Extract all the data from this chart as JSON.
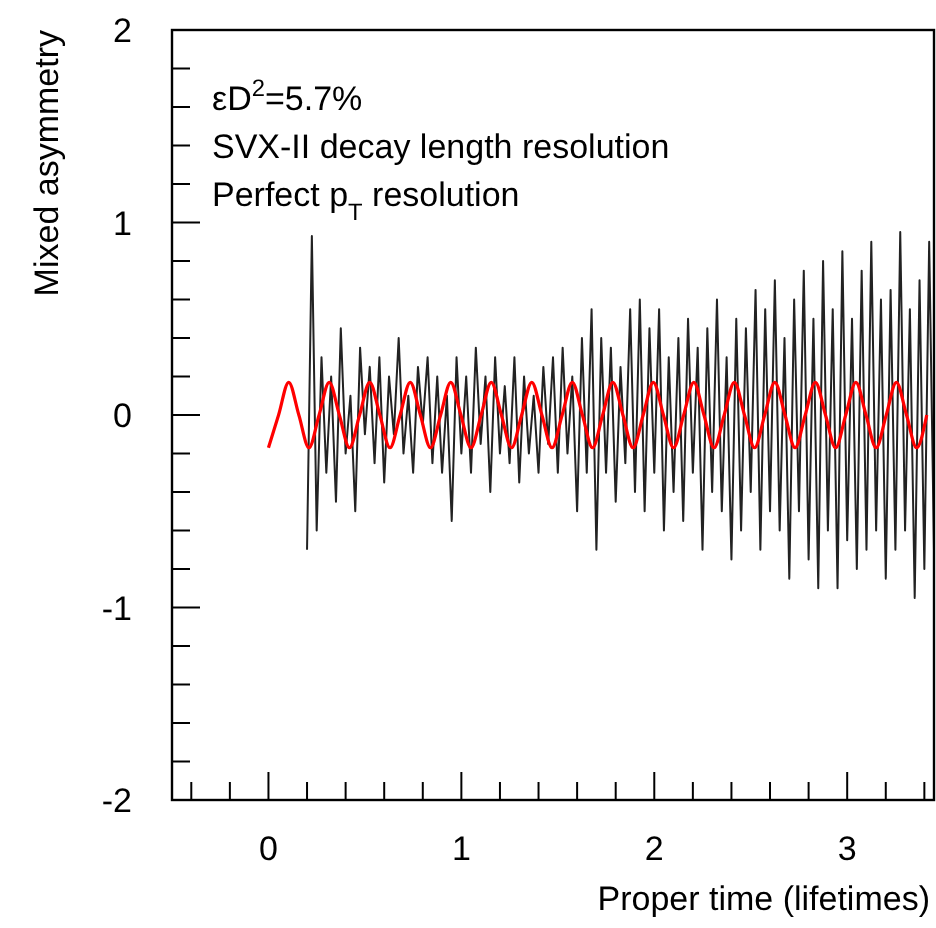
{
  "chart_data": {
    "type": "line",
    "xlabel": "Proper time (lifetimes)",
    "ylabel": "Mixed asymmetry",
    "annotations": [
      "εD$^{2}$=5.7%",
      "SVX-II decay length resolution",
      "Perfect p$_{T}$ resolution"
    ],
    "xlim": [
      -0.5,
      3.45
    ],
    "ylim": [
      -2,
      2
    ],
    "xticks": [
      {
        "value": -0.4,
        "label": null
      },
      {
        "value": -0.2,
        "label": null
      },
      0,
      {
        "value": 0.2,
        "label": null
      },
      {
        "value": 0.4,
        "label": null
      },
      {
        "value": 0.6,
        "label": null
      },
      {
        "value": 0.8,
        "label": null
      },
      1,
      {
        "value": 1.2,
        "label": null
      },
      {
        "value": 1.4,
        "label": null
      },
      {
        "value": 1.6,
        "label": null
      },
      {
        "value": 1.8,
        "label": null
      },
      2,
      {
        "value": 2.2,
        "label": null
      },
      {
        "value": 2.4,
        "label": null
      },
      {
        "value": 2.6,
        "label": null
      },
      {
        "value": 2.8,
        "label": null
      },
      3,
      {
        "value": 3.2,
        "label": null
      },
      {
        "value": 3.4,
        "label": null
      }
    ],
    "yticks": [
      -2,
      {
        "value": -1.8,
        "label": null
      },
      {
        "value": -1.6,
        "label": null
      },
      {
        "value": -1.4,
        "label": null
      },
      {
        "value": -1.2,
        "label": null
      },
      -1,
      {
        "value": -0.8,
        "label": null
      },
      {
        "value": -0.6,
        "label": null
      },
      {
        "value": -0.4,
        "label": null
      },
      {
        "value": -0.2,
        "label": null
      },
      0,
      {
        "value": 0.2,
        "label": null
      },
      {
        "value": 0.4,
        "label": null
      },
      {
        "value": 0.6,
        "label": null
      },
      {
        "value": 0.8,
        "label": null
      },
      1,
      {
        "value": 1.2,
        "label": null
      },
      {
        "value": 1.4,
        "label": null
      },
      {
        "value": 1.6,
        "label": null
      },
      {
        "value": 1.8,
        "label": null
      },
      2
    ],
    "grid": false,
    "series": [
      {
        "color": "#222222",
        "x": [
          0.2,
          0.225,
          0.25,
          0.275,
          0.3,
          0.325,
          0.35,
          0.375,
          0.4,
          0.425,
          0.45,
          0.475,
          0.5,
          0.525,
          0.55,
          0.575,
          0.6,
          0.625,
          0.65,
          0.675,
          0.7,
          0.725,
          0.75,
          0.775,
          0.8,
          0.825,
          0.85,
          0.875,
          0.9,
          0.925,
          0.95,
          0.975,
          1.0,
          1.025,
          1.05,
          1.075,
          1.1,
          1.125,
          1.15,
          1.175,
          1.2,
          1.225,
          1.25,
          1.275,
          1.3,
          1.325,
          1.35,
          1.375,
          1.4,
          1.425,
          1.45,
          1.475,
          1.5,
          1.525,
          1.55,
          1.575,
          1.6,
          1.625,
          1.65,
          1.675,
          1.7,
          1.725,
          1.75,
          1.775,
          1.8,
          1.825,
          1.85,
          1.875,
          1.9,
          1.925,
          1.95,
          1.975,
          2.0,
          2.025,
          2.05,
          2.075,
          2.1,
          2.125,
          2.15,
          2.175,
          2.2,
          2.225,
          2.25,
          2.275,
          2.3,
          2.325,
          2.35,
          2.375,
          2.4,
          2.425,
          2.45,
          2.475,
          2.5,
          2.525,
          2.55,
          2.575,
          2.6,
          2.625,
          2.65,
          2.675,
          2.7,
          2.725,
          2.75,
          2.775,
          2.8,
          2.825,
          2.85,
          2.875,
          2.9,
          2.925,
          2.95,
          2.975,
          3.0,
          3.025,
          3.05,
          3.075,
          3.1,
          3.125,
          3.15,
          3.175,
          3.2,
          3.225,
          3.25,
          3.275,
          3.3,
          3.325,
          3.35,
          3.375,
          3.4,
          3.425,
          3.45
        ],
        "values": [
          -0.7,
          0.93,
          -0.6,
          0.3,
          -0.3,
          0.2,
          -0.45,
          0.45,
          -0.2,
          0.1,
          -0.5,
          0.35,
          -0.1,
          0.25,
          -0.25,
          0.3,
          -0.35,
          0.2,
          -0.1,
          0.4,
          -0.2,
          0.1,
          -0.3,
          0.25,
          -0.05,
          0.3,
          -0.25,
          0.2,
          -0.3,
          0.1,
          -0.55,
          0.3,
          -0.2,
          0.2,
          -0.3,
          0.35,
          -0.15,
          0.2,
          -0.4,
          0.3,
          -0.2,
          0.15,
          -0.25,
          0.3,
          -0.35,
          0.2,
          -0.2,
          0.1,
          -0.3,
          0.25,
          -0.15,
          0.3,
          -0.3,
          0.35,
          -0.2,
          0.2,
          -0.5,
          0.4,
          -0.3,
          0.55,
          -0.7,
          0.4,
          -0.3,
          0.35,
          -0.45,
          0.25,
          -0.25,
          0.55,
          -0.4,
          0.6,
          -0.5,
          0.45,
          -0.3,
          0.55,
          -0.6,
          0.3,
          -0.4,
          0.4,
          -0.55,
          0.5,
          -0.3,
          0.35,
          -0.7,
          0.45,
          -0.4,
          0.6,
          -0.5,
          0.3,
          -0.75,
          0.5,
          -0.6,
          0.45,
          -0.4,
          0.65,
          -0.7,
          0.55,
          -0.5,
          0.7,
          -0.6,
          0.4,
          -0.85,
          0.6,
          -0.5,
          0.75,
          -0.75,
          0.5,
          -0.9,
          0.8,
          -0.6,
          0.55,
          -0.9,
          0.85,
          -0.65,
          0.5,
          -0.8,
          0.75,
          -0.7,
          0.9,
          -0.6,
          0.6,
          -0.85,
          0.65,
          -0.7,
          0.95,
          -0.6,
          0.55,
          -0.95,
          0.7,
          -0.8,
          0.9,
          -0.7
        ]
      },
      {
        "color": "#ff0000",
        "x": [
          0,
          0.0525,
          0.105,
          0.1575,
          0.21,
          0.2625,
          0.315,
          0.3675,
          0.42,
          0.4725,
          0.525,
          0.5775,
          0.63,
          0.6825,
          0.735,
          0.7875,
          0.84,
          0.8925,
          0.945,
          0.9975,
          1.05,
          1.1025,
          1.155,
          1.2075,
          1.26,
          1.3125,
          1.365,
          1.4175,
          1.47,
          1.5225,
          1.575,
          1.6275,
          1.68,
          1.7325,
          1.785,
          1.8375,
          1.89,
          1.9425,
          1.995,
          2.0475,
          2.1,
          2.1525,
          2.205,
          2.2575,
          2.31,
          2.3625,
          2.415,
          2.4675,
          2.52,
          2.5725,
          2.625,
          2.6775,
          2.73,
          2.7825,
          2.835,
          2.8875,
          2.94,
          2.9925,
          3.045,
          3.0975,
          3.15,
          3.2025,
          3.255,
          3.3075,
          3.36,
          3.4125
        ],
        "values": [
          -0.17,
          0,
          0.17,
          0,
          -0.17,
          0,
          0.17,
          0,
          -0.17,
          0,
          0.17,
          0,
          -0.17,
          0,
          0.17,
          0,
          -0.17,
          0,
          0.17,
          0,
          -0.17,
          0,
          0.17,
          0,
          -0.17,
          0,
          0.17,
          0,
          -0.17,
          0,
          0.17,
          0,
          -0.17,
          0,
          0.17,
          0,
          -0.17,
          0,
          0.17,
          0,
          -0.17,
          0,
          0.17,
          0,
          -0.17,
          0,
          0.17,
          0,
          -0.17,
          0,
          0.17,
          0,
          -0.17,
          0,
          0.17,
          0,
          -0.17,
          0,
          0.17,
          0,
          -0.17,
          0,
          0.17,
          0,
          -0.17,
          0
        ]
      }
    ]
  }
}
